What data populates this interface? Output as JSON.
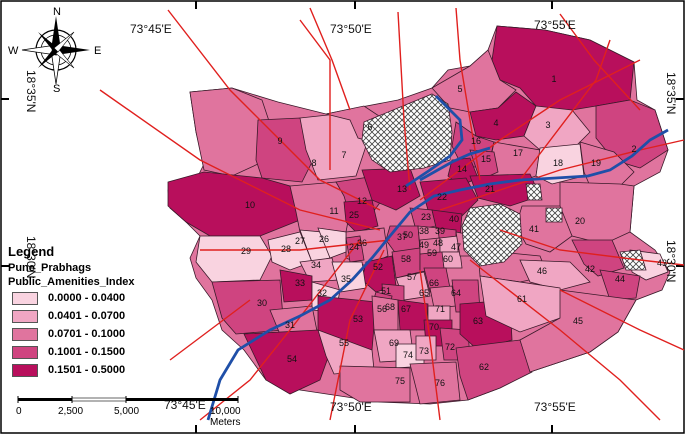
{
  "map": {
    "compass": {
      "north": "N",
      "south": "S",
      "east": "E",
      "west": "W"
    },
    "graticule": {
      "top": [
        "73°45'E",
        "73°50'E",
        "73°55'E"
      ],
      "bottom": [
        "73°45'E",
        "73°50'E",
        "73°55'E"
      ],
      "left": [
        "18°35'N",
        "18°30'N"
      ],
      "right": [
        "18°35'N",
        "18°30'N"
      ]
    },
    "legend": {
      "title": "Legend",
      "layer": "Pune_Prabhags",
      "field": "Public_Amenities_Index",
      "classes": [
        {
          "label": "0.0000 - 0.0400",
          "color": "#f9d3e0"
        },
        {
          "label": "0.0401 - 0.0700",
          "color": "#f0a6c3"
        },
        {
          "label": "0.0701 - 0.1000",
          "color": "#e0749e"
        },
        {
          "label": "0.1001 - 0.1500",
          "color": "#cf4480"
        },
        {
          "label": "0.1501 - 0.5000",
          "color": "#b80f5c"
        }
      ]
    },
    "scale_bar": {
      "ticks": [
        "0",
        "2,500",
        "5,000",
        "10,000 Meters"
      ]
    },
    "ward_numbers": [
      "1",
      "2",
      "3",
      "4",
      "5",
      "6",
      "7",
      "8",
      "9",
      "10",
      "11",
      "12",
      "13",
      "14",
      "15",
      "16",
      "17",
      "18",
      "19",
      "20",
      "21",
      "22",
      "23",
      "24",
      "25",
      "26",
      "27",
      "28",
      "29",
      "30",
      "31",
      "32",
      "33",
      "34",
      "35",
      "36",
      "37",
      "38",
      "39",
      "40",
      "41",
      "42",
      "43",
      "44",
      "45",
      "46",
      "47",
      "48",
      "49",
      "50",
      "51",
      "52",
      "53",
      "54",
      "55",
      "56",
      "57",
      "58",
      "59",
      "60",
      "61",
      "62",
      "63",
      "64",
      "65",
      "66",
      "67",
      "68",
      "69",
      "70",
      "71",
      "72",
      "73",
      "74",
      "75",
      "76"
    ],
    "colors": {
      "river": "#1f4fa8",
      "roads": "#e0201e",
      "boundary": "#3a1a2a"
    }
  }
}
